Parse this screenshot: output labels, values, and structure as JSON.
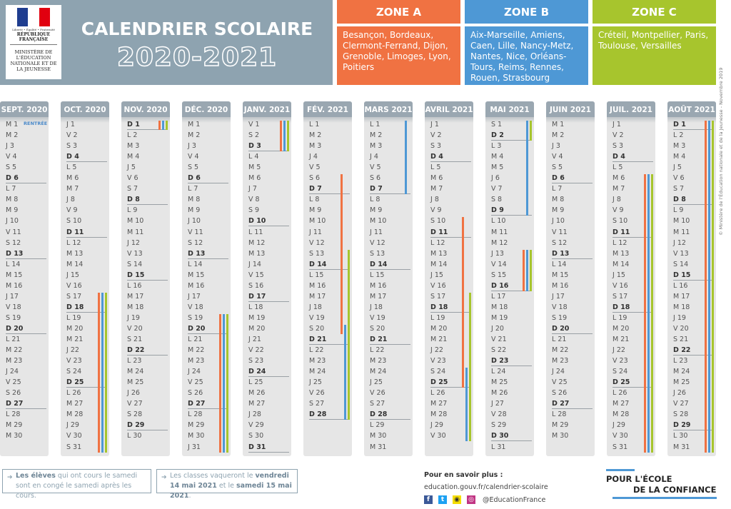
{
  "header": {
    "motto": "Liberté • Égalité • Fraternité",
    "republic": "RÉPUBLIQUE FRANÇAISE",
    "ministry": "MINISTÈRE DE L'ÉDUCATION NATIONALE ET DE LA JEUNESSE",
    "title": "CALENDRIER SCOLAIRE",
    "years": "2020-2021"
  },
  "zones": [
    {
      "name": "ZONE A",
      "cities": "Besançon, Bordeaux, Clermont-Ferrand, Dijon, Grenoble, Limoges, Lyon, Poitiers",
      "color": "#f07242"
    },
    {
      "name": "ZONE B",
      "cities": "Aix-Marseille, Amiens, Caen, Lille, Nancy-Metz, Nantes, Nice, Orléans-Tours, Reims, Rennes, Rouen, Strasbourg",
      "color": "#4e98d5"
    },
    {
      "name": "ZONE C",
      "cities": "Créteil, Montpellier, Paris, Toulouse, Versailles",
      "color": "#a7c52d"
    }
  ],
  "rentree_label": "RENTRÉE",
  "months": [
    {
      "name": "SEPT. 2020",
      "days": "M1 M2 J3 V4 S5 D6 L7 M8 M9 J10 V11 S12 D13 L14 M15 M16 J17 V18 S19 D20 L21 M22 M23 J24 V25 S26 D27 L28 M29 M30"
    },
    {
      "name": "OCT. 2020",
      "days": "J1 V2 S3 D4 L5 M6 M7 J8 V9 S10 D11 L12 M13 M14 J15 V16 S17 D18 L19 M20 M21 J22 V23 S24 D25 L26 M27 M28 J29 V30 S31"
    },
    {
      "name": "NOV. 2020",
      "days": "D1 L2 M3 M4 J5 V6 S7 D8 L9 M10 M11 J12 V13 S14 D15 L16 M17 M18 J19 V20 S21 D22 L23 M24 M25 J26 V27 S28 D29 L30"
    },
    {
      "name": "DÉC. 2020",
      "days": "M1 M2 J3 V4 S5 D6 L7 M8 M9 J10 V11 S12 D13 L14 M15 M16 J17 V18 S19 D20 L21 M22 M23 J24 V25 S26 D27 L28 M29 M30 J31"
    },
    {
      "name": "JANV. 2021",
      "days": "V1 S2 D3 L4 M5 M6 J7 V8 S9 D10 L11 M12 M13 J14 V15 S16 D17 L18 M19 M20 J21 V22 S23 D24 L25 M26 M27 J28 V29 S30 D31"
    },
    {
      "name": "FÉV. 2021",
      "days": "L1 M2 M3 J4 V5 S6 D7 L8 M9 M10 J11 V12 S13 D14 L15 M16 M17 J18 V19 S20 D21 L22 M23 M24 J25 V26 S27 D28"
    },
    {
      "name": "MARS 2021",
      "days": "L1 M2 M3 J4 V5 S6 D7 L8 M9 M10 J11 V12 S13 D14 L15 M16 M17 J18 V19 S20 D21 L22 M23 M24 J25 V26 S27 D28 L29 M30 M31"
    },
    {
      "name": "AVRIL 2021",
      "days": "J1 V2 S3 D4 L5 M6 M7 J8 V9 S10 D11 L12 M13 M14 J15 V16 S17 D18 L19 M20 M21 J22 V23 S24 D25 L26 M27 M28 J29 V30"
    },
    {
      "name": "MAI 2021",
      "days": "S1 D2 L3 M4 M5 J6 V7 S8 D9 L10 M11 M12 J13 V14 S15 D16 L17 M18 M19 J20 V21 S22 D23 L24 M25 M26 J27 V28 S29 D30 L31"
    },
    {
      "name": "JUIN 2021",
      "days": "M1 M2 J3 V4 S5 D6 L7 M8 M9 J10 V11 S12 D13 L14 M15 M16 J17 V18 S19 D20 L21 M22 M23 J24 V25 S26 D27 L28 M29 M30"
    },
    {
      "name": "JUIL. 2021",
      "days": "J1 V2 S3 D4 L5 M6 M7 J8 V9 S10 D11 L12 M13 M14 J15 V16 S17 D18 L19 M20 M21 J22 V23 S24 D25 L26 M27 M28 J29 V30 S31"
    },
    {
      "name": "AOÛT 2021",
      "days": "D1 L2 M3 M4 J5 V6 S7 D8 L9 M10 M11 J12 V13 S14 D15 L16 M17 M18 J19 V20 S21 D22 L23 M24 M25 J26 V27 S28 D29 L30 M31"
    }
  ],
  "holidays": [
    {
      "month": 0,
      "day": 1,
      "days": 1,
      "zone": "rentree"
    },
    {
      "month": 1,
      "day": 17,
      "days": 15,
      "zone": "a"
    },
    {
      "month": 1,
      "day": 17,
      "days": 15,
      "zone": "b"
    },
    {
      "month": 1,
      "day": 17,
      "days": 15,
      "zone": "c"
    },
    {
      "month": 2,
      "day": 1,
      "days": 1,
      "zone": "a"
    },
    {
      "month": 2,
      "day": 1,
      "days": 1,
      "zone": "b"
    },
    {
      "month": 2,
      "day": 1,
      "days": 1,
      "zone": "c"
    },
    {
      "month": 3,
      "day": 19,
      "days": 13,
      "zone": "a"
    },
    {
      "month": 3,
      "day": 19,
      "days": 13,
      "zone": "b"
    },
    {
      "month": 3,
      "day": 19,
      "days": 13,
      "zone": "c"
    },
    {
      "month": 4,
      "day": 1,
      "days": 3,
      "zone": "a"
    },
    {
      "month": 4,
      "day": 1,
      "days": 3,
      "zone": "b"
    },
    {
      "month": 4,
      "day": 1,
      "days": 3,
      "zone": "c"
    },
    {
      "month": 5,
      "day": 6,
      "days": 15,
      "zone": "a"
    },
    {
      "month": 5,
      "day": 20,
      "days": 9,
      "zone": "b"
    },
    {
      "month": 5,
      "day": 13,
      "days": 16,
      "zone": "c"
    },
    {
      "month": 6,
      "day": 1,
      "days": 7,
      "zone": "b"
    },
    {
      "month": 7,
      "day": 10,
      "days": 16,
      "zone": "a"
    },
    {
      "month": 7,
      "day": 24,
      "days": 7,
      "zone": "b"
    },
    {
      "month": 7,
      "day": 17,
      "days": 14,
      "zone": "c"
    },
    {
      "month": 8,
      "day": 1,
      "days": 9,
      "zone": "b"
    },
    {
      "month": 8,
      "day": 1,
      "days": 2,
      "zone": "c"
    },
    {
      "month": 8,
      "day": 13,
      "days": 4,
      "zone": "a"
    },
    {
      "month": 8,
      "day": 13,
      "days": 4,
      "zone": "b"
    },
    {
      "month": 8,
      "day": 13,
      "days": 4,
      "zone": "c"
    },
    {
      "month": 10,
      "day": 6,
      "days": 26,
      "zone": "a"
    },
    {
      "month": 10,
      "day": 6,
      "days": 26,
      "zone": "b"
    },
    {
      "month": 10,
      "day": 6,
      "days": 26,
      "zone": "c"
    },
    {
      "month": 11,
      "day": 1,
      "days": 31,
      "zone": "a"
    },
    {
      "month": 11,
      "day": 1,
      "days": 31,
      "zone": "b"
    },
    {
      "month": 11,
      "day": 1,
      "days": 31,
      "zone": "c"
    }
  ],
  "notes": {
    "note1_bold": "Les élèves",
    "note1_text": " qui ont cours le samedi sont en congé le samedi après les cours.",
    "note2_pre": "Les classes vaqueront le ",
    "note2_bold1": "vendredi 14 mai 2021",
    "note2_mid": " et le ",
    "note2_bold2": "samedi 15 mai 2021",
    "note2_end": "."
  },
  "footer": {
    "more_title": "Pour en savoir plus :",
    "url": "education.gouv.fr/calendrier-scolaire",
    "handle": "@EducationFrance",
    "slogan_line1": "POUR L'ÉCOLE",
    "slogan_line2": "DE LA CONFIANCE",
    "copyright": "© Ministère de l'Éducation nationale et de la Jeunesse - Novembre 2019"
  }
}
